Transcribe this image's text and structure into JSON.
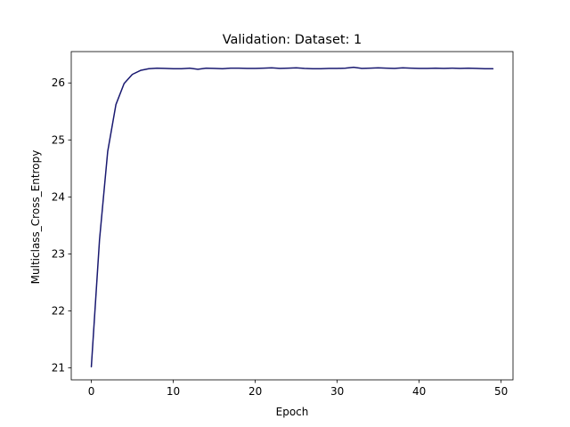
{
  "chart_data": {
    "type": "line",
    "title": "Validation: Dataset: 1",
    "xlabel": "Epoch",
    "ylabel": "Multiclass_Cross_Entropy",
    "xlim": [
      -2.45,
      51.45
    ],
    "ylim": [
      20.79,
      26.55
    ],
    "xticks": [
      0,
      10,
      20,
      30,
      40,
      50
    ],
    "yticks": [
      21,
      22,
      23,
      24,
      25,
      26
    ],
    "grid": false,
    "legend": "none",
    "colors": {
      "line": "#191970",
      "axes": "#000000",
      "background": "#ffffff"
    },
    "series": [
      {
        "x": [
          0,
          1,
          2,
          3,
          4,
          5,
          6,
          7,
          8,
          9,
          10,
          11,
          12,
          13,
          14,
          15,
          16,
          17,
          18,
          19,
          20,
          21,
          22,
          23,
          24,
          25,
          26,
          27,
          28,
          29,
          30,
          31,
          32,
          33,
          34,
          35,
          36,
          37,
          38,
          39,
          40,
          41,
          42,
          43,
          44,
          45,
          46,
          47,
          48,
          49
        ],
        "values": [
          21.02,
          23.25,
          24.8,
          25.62,
          25.99,
          26.15,
          26.22,
          26.25,
          26.26,
          26.255,
          26.25,
          26.25,
          26.26,
          26.24,
          26.26,
          26.255,
          26.25,
          26.26,
          26.26,
          26.255,
          26.255,
          26.26,
          26.265,
          26.255,
          26.26,
          26.265,
          26.255,
          26.25,
          26.25,
          26.255,
          26.255,
          26.26,
          26.275,
          26.255,
          26.26,
          26.265,
          26.26,
          26.255,
          26.265,
          26.26,
          26.255,
          26.255,
          26.26,
          26.255,
          26.26,
          26.255,
          26.26,
          26.255,
          26.25,
          26.25
        ]
      }
    ]
  }
}
